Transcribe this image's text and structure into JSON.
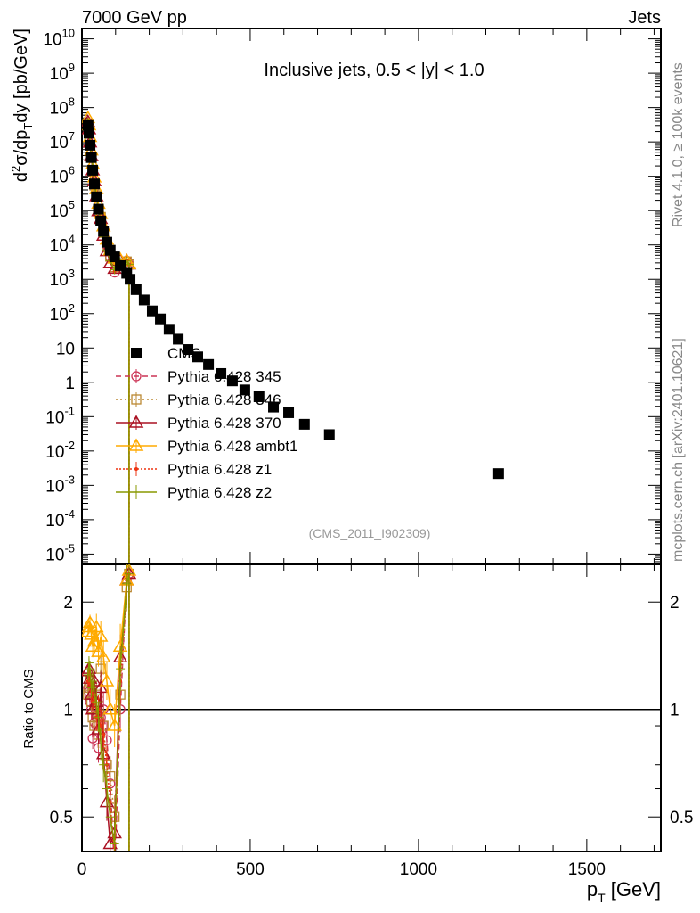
{
  "chart_data": [
    {
      "type": "scatter",
      "panel": "main",
      "title": "Inclusive jets, 0.5 < |y| < 1.0",
      "header_left": "7000 GeV pp",
      "header_right": "Jets",
      "ylabel": "d²σ/dp_T dy [pb/GeV]",
      "ylabel_parts": {
        "pre": "d",
        "sup2": "2",
        "mid": "σ/dp",
        "sub": "T",
        "post": "dy [pb/GeV]"
      },
      "yscale": "log",
      "ylim": [
        5e-06,
        20000000000.0
      ],
      "xlim": [
        0,
        1720
      ],
      "ytick_labels": [
        "10^10",
        "10^9",
        "10^8",
        "10^7",
        "10^6",
        "10^5",
        "10^4",
        "10^3",
        "10^2",
        "10",
        "1",
        "10^-1",
        "10^-2",
        "10^-3",
        "10^-4",
        "10^-5"
      ],
      "ytick_values": [
        10000000000.0,
        1000000000.0,
        100000000.0,
        10000000.0,
        1000000.0,
        100000.0,
        10000.0,
        1000.0,
        100.0,
        10,
        1,
        0.1,
        0.01,
        0.001,
        0.0001,
        1e-05
      ],
      "analysis_label": "(CMS_2011_I902309)",
      "side_label_top": "Rivet 4.1.0, ≥ 100k events",
      "side_label_bottom": "mcplots.cern.ch [arXiv:2401.10621]",
      "legend_position": "center-left",
      "cms": {
        "name": "CMS",
        "color": "#000000",
        "x": [
          18,
          21,
          24,
          28,
          32,
          37,
          43,
          49,
          56,
          64,
          74,
          84,
          97,
          114,
          133,
          143,
          161,
          185,
          209,
          233,
          259,
          286,
          315,
          344,
          376,
          413,
          447,
          484,
          526,
          569,
          614,
          661,
          735,
          1238
        ],
        "y": [
          30000000.0,
          18000000.0,
          8000000.0,
          3500000.0,
          1500000.0,
          600000.0,
          250000.0,
          110000.0,
          50000.0,
          25000.0,
          12000.0,
          7000.0,
          4500.0,
          2500.0,
          1500.0,
          1000,
          500,
          250,
          120,
          70,
          35,
          18,
          9,
          5.5,
          3.3,
          1.8,
          1.1,
          0.6,
          0.38,
          0.19,
          0.13,
          0.06,
          0.03,
          0.0022
        ]
      }
    },
    {
      "type": "line",
      "panel": "ratio",
      "ylabel": "Ratio to CMS",
      "yscale": "log",
      "ylim": [
        0.4,
        2.55
      ],
      "xlim": [
        0,
        1720
      ],
      "xlabel": "p_T [GeV]",
      "xlabel_parts": {
        "pre": "p",
        "sub": "T",
        "post": " [GeV]"
      },
      "xtick_labels": [
        "0",
        "500",
        "1000",
        "1500"
      ],
      "xtick_values": [
        0,
        500,
        1000,
        1500
      ],
      "ytick_labels": [
        "2",
        "1",
        "0.5"
      ],
      "ytick_values": [
        2,
        1,
        0.5
      ],
      "reference_line": 1,
      "x": [
        18,
        21,
        24,
        28,
        32,
        37,
        43,
        49,
        56,
        64,
        74,
        84,
        97,
        114,
        133,
        140
      ],
      "series": [
        {
          "name": "Pythia 6.428 345",
          "color": "#cc3355",
          "dash": "6,4",
          "marker": "circle",
          "values": [
            1.15,
            1.12,
            1.05,
            1.0,
            0.83,
            0.92,
            0.95,
            0.78,
            0.95,
            1.0,
            0.82,
            0.62,
            0.35,
            1.0,
            2.3,
            2.4
          ]
        },
        {
          "name": "Pythia 6.428 346",
          "color": "#bb8833",
          "dash": "2,3",
          "marker": "square",
          "values": [
            1.1,
            1.15,
            1.2,
            1.05,
            0.95,
            0.9,
            1.1,
            0.85,
            1.3,
            0.9,
            0.7,
            0.65,
            0.5,
            1.1,
            2.2,
            2.4
          ]
        },
        {
          "name": "Pythia 6.428 370",
          "color": "#aa1122",
          "dash": "",
          "marker": "triangle",
          "values": [
            1.28,
            1.3,
            1.22,
            1.1,
            1.0,
            1.2,
            1.05,
            0.88,
            1.15,
            0.75,
            0.55,
            0.42,
            0.45,
            1.4,
            2.3,
            2.4
          ]
        },
        {
          "name": "Pythia 6.428 ambt1",
          "color": "#ffaa00",
          "dash": "",
          "marker": "triangle",
          "values": [
            1.65,
            1.7,
            1.75,
            1.62,
            1.5,
            1.55,
            1.7,
            1.45,
            1.6,
            1.4,
            1.2,
            1.0,
            0.9,
            1.5,
            2.3,
            2.45
          ]
        },
        {
          "name": "Pythia 6.428 z1",
          "color": "#ee3311",
          "dash": "2,2",
          "marker": "dot",
          "values": [
            1.2,
            1.25,
            1.18,
            1.12,
            1.05,
            1.1,
            0.95,
            1.0,
            0.9,
            0.85,
            0.7,
            0.55,
            0.38,
            1.2,
            2.3,
            2.4
          ]
        },
        {
          "name": "Pythia 6.428 z2",
          "color": "#889900",
          "dash": "",
          "marker": "plus",
          "values": [
            1.25,
            1.35,
            1.3,
            1.15,
            1.2,
            1.1,
            1.05,
            0.95,
            0.8,
            0.7,
            0.6,
            0.5,
            0.42,
            1.3,
            2.25,
            2.4
          ]
        }
      ]
    }
  ]
}
